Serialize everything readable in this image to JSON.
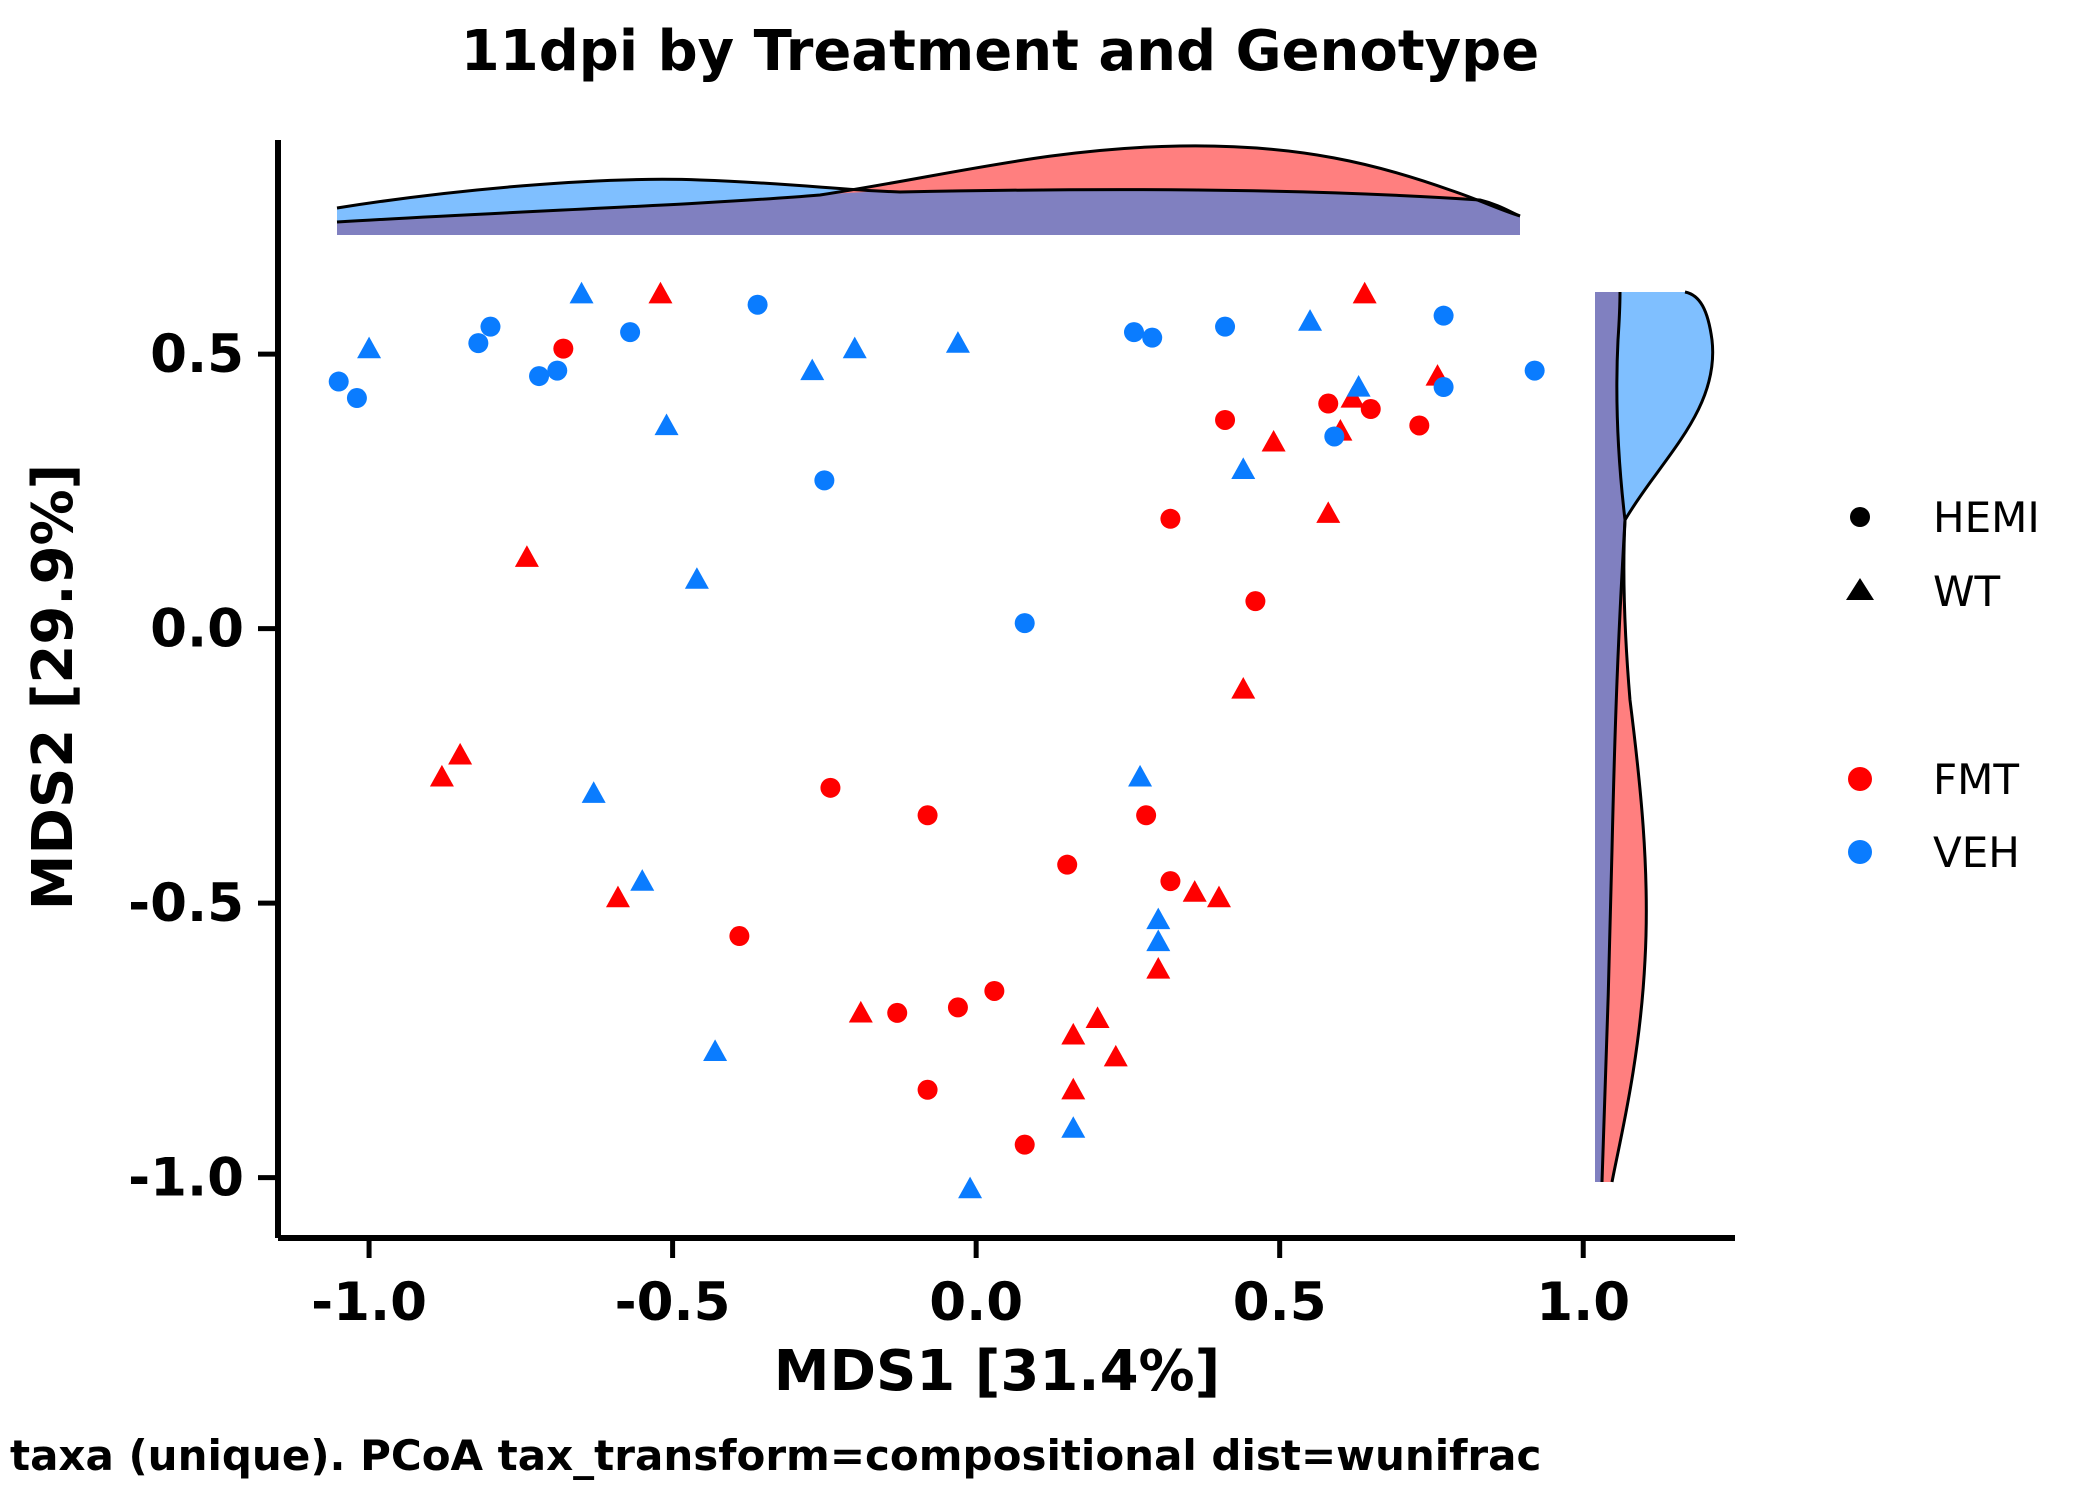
{
  "chart_data": {
    "type": "scatter",
    "title": "11dpi by Treatment and Genotype",
    "xlabel": "MDS1 [31.4%]",
    "ylabel": "MDS2 [29.9%]",
    "caption": "taxa (unique). PCoA tax_transform=compositional dist=wunifrac",
    "xlim": [
      -1.15,
      1.25
    ],
    "ylim": [
      -1.11,
      0.89
    ],
    "x_ticks": [
      -1.0,
      -0.5,
      0.0,
      0.5,
      1.0
    ],
    "x_tick_labels": [
      "-1.0",
      "-0.5",
      "0.0",
      "0.5",
      "1.0"
    ],
    "y_ticks": [
      -1.0,
      -0.5,
      0.0,
      0.5
    ],
    "y_tick_labels": [
      "-1.0",
      "-0.5",
      "0.0",
      "0.5"
    ],
    "grid": false,
    "colors": {
      "FMT": "#ff0000",
      "VEH": "#0a7cff"
    },
    "legend_placement": "right",
    "legend": {
      "shape": [
        {
          "label": "HEMI",
          "shape": "circle"
        },
        {
          "label": "WT",
          "shape": "triangle"
        }
      ],
      "color": [
        {
          "label": "FMT",
          "color": "#ff0000"
        },
        {
          "label": "VEH",
          "color": "#0a7cff"
        }
      ]
    },
    "marginal_densities": {
      "top": "MDS1 density by treatment (FMT vs VEH)",
      "right": "MDS2 density by treatment (FMT vs VEH)",
      "fill_colors": {
        "FMT": "#ff7f7f",
        "VEH": "#7fbfff",
        "overlap": "#8080c0"
      }
    },
    "series": [
      {
        "name": "FMT",
        "genotype": "HEMI",
        "shape": "circle",
        "color": "#ff0000",
        "x": [
          -0.68,
          0.41,
          0.58,
          0.65,
          0.73,
          0.32,
          0.46,
          -0.24,
          -0.08,
          0.28,
          0.15,
          0.32,
          -0.39,
          0.03,
          -0.03,
          -0.13,
          -0.08,
          0.08
        ],
        "y": [
          0.51,
          0.38,
          0.41,
          0.4,
          0.37,
          0.2,
          0.05,
          -0.29,
          -0.34,
          -0.34,
          -0.43,
          -0.46,
          -0.56,
          -0.66,
          -0.69,
          -0.7,
          -0.84,
          -0.94
        ]
      },
      {
        "name": "FMT",
        "genotype": "WT",
        "shape": "triangle",
        "color": "#ff0000",
        "x": [
          -0.52,
          0.64,
          0.76,
          0.62,
          0.6,
          0.49,
          0.58,
          -0.74,
          0.44,
          -0.85,
          -0.88,
          -0.59,
          0.36,
          0.4,
          0.3,
          -0.19,
          0.2,
          0.16,
          0.23,
          0.16
        ],
        "y": [
          0.61,
          0.61,
          0.46,
          0.42,
          0.36,
          0.34,
          0.21,
          0.13,
          -0.11,
          -0.23,
          -0.27,
          -0.49,
          -0.48,
          -0.49,
          -0.62,
          -0.7,
          -0.71,
          -0.74,
          -0.78,
          -0.84
        ]
      },
      {
        "name": "VEH",
        "genotype": "HEMI",
        "shape": "circle",
        "color": "#0a7cff",
        "x": [
          -1.05,
          -1.02,
          -0.8,
          -0.82,
          -0.72,
          -0.69,
          -0.57,
          -0.36,
          0.26,
          0.29,
          0.41,
          0.77,
          0.77,
          0.92,
          0.59,
          -0.25,
          0.08
        ],
        "y": [
          0.45,
          0.42,
          0.55,
          0.52,
          0.46,
          0.47,
          0.54,
          0.59,
          0.54,
          0.53,
          0.55,
          0.57,
          0.44,
          0.47,
          0.35,
          0.27,
          0.01
        ]
      },
      {
        "name": "VEH",
        "genotype": "WT",
        "shape": "triangle",
        "color": "#0a7cff",
        "x": [
          -1.0,
          -0.65,
          -0.27,
          -0.2,
          -0.03,
          0.55,
          0.63,
          -0.51,
          0.44,
          -0.46,
          -0.63,
          -0.55,
          0.27,
          0.3,
          0.3,
          -0.43,
          0.16,
          -0.01
        ],
        "y": [
          0.51,
          0.61,
          0.47,
          0.51,
          0.52,
          0.56,
          0.44,
          0.37,
          0.29,
          0.09,
          -0.3,
          -0.46,
          -0.27,
          -0.53,
          -0.57,
          -0.77,
          -0.91,
          -1.02
        ]
      }
    ]
  }
}
